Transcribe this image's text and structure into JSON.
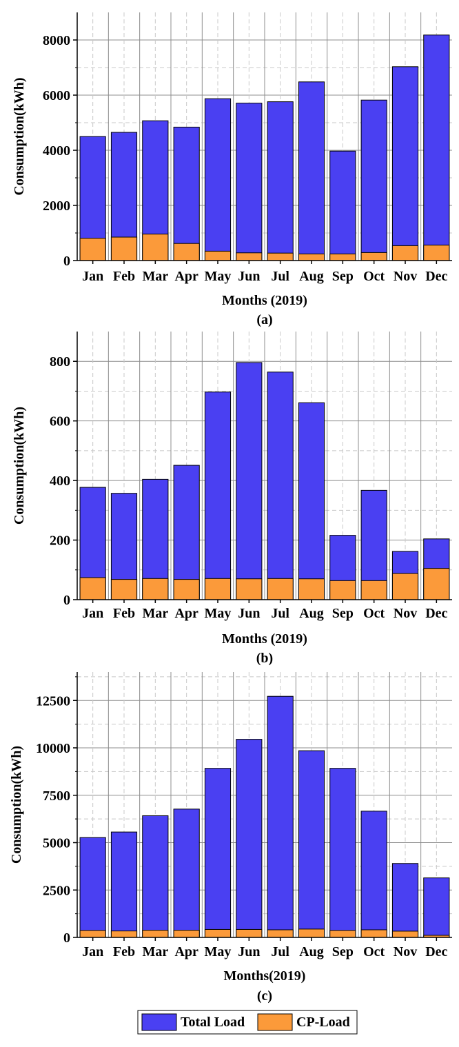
{
  "colors": {
    "total_load": "#4a40f2",
    "cp_load": "#fb9a3a",
    "grid_major": "#8c8c8c",
    "grid_minor": "#c8c8c8"
  },
  "legend": {
    "total_label": "Total Load",
    "cp_label": "CP-Load"
  },
  "chart_data": [
    {
      "type": "bar",
      "stacking": "overlay",
      "caption": "(a)",
      "xlabel": "Months (2019)",
      "ylabel": "Consumption(kWh)",
      "categories": [
        "Jan",
        "Feb",
        "Mar",
        "Apr",
        "May",
        "Jun",
        "Jul",
        "Aug",
        "Sep",
        "Oct",
        "Nov",
        "Dec"
      ],
      "ylim": [
        0,
        9000
      ],
      "yticks": [
        0,
        2000,
        4000,
        6000,
        8000
      ],
      "series": [
        {
          "name": "Total Load",
          "values": [
            4500,
            4650,
            5070,
            4840,
            5870,
            5710,
            5760,
            6480,
            3970,
            5820,
            7030,
            8180
          ]
        },
        {
          "name": "CP-Load",
          "values": [
            810,
            850,
            960,
            620,
            340,
            280,
            270,
            240,
            240,
            290,
            540,
            560
          ]
        }
      ]
    },
    {
      "type": "bar",
      "stacking": "overlay",
      "caption": "(b)",
      "xlabel": "Months (2019)",
      "ylabel": "Consumption(kWh)",
      "categories": [
        "Jan",
        "Feb",
        "Mar",
        "Apr",
        "May",
        "Jun",
        "Jul",
        "Aug",
        "Sep",
        "Oct",
        "Nov",
        "Dec"
      ],
      "ylim": [
        0,
        900
      ],
      "yticks": [
        0,
        200,
        400,
        600,
        800
      ],
      "series": [
        {
          "name": "Total Load",
          "values": [
            377,
            357,
            404,
            451,
            697,
            796,
            764,
            661,
            216,
            367,
            162,
            204
          ]
        },
        {
          "name": "CP-Load",
          "values": [
            74,
            68,
            71,
            68,
            71,
            70,
            71,
            70,
            64,
            64,
            88,
            105
          ]
        }
      ]
    },
    {
      "type": "bar",
      "stacking": "overlay",
      "caption": "(c)",
      "xlabel": "Months(2019)",
      "ylabel": "Consumption(kWh)",
      "categories": [
        "Jan",
        "Feb",
        "Mar",
        "Apr",
        "May",
        "Jun",
        "Jul",
        "Aug",
        "Sep",
        "Oct",
        "Nov",
        "Dec"
      ],
      "ylim": [
        0,
        14000
      ],
      "yticks": [
        0,
        2500,
        5000,
        7500,
        10000,
        12500
      ],
      "series": [
        {
          "name": "Total Load",
          "values": [
            5270,
            5560,
            6420,
            6770,
            8920,
            10450,
            12720,
            9850,
            8920,
            6660,
            3900,
            3140
          ]
        },
        {
          "name": "CP-Load",
          "values": [
            370,
            340,
            380,
            380,
            420,
            420,
            400,
            440,
            370,
            400,
            330,
            110
          ]
        }
      ]
    }
  ]
}
